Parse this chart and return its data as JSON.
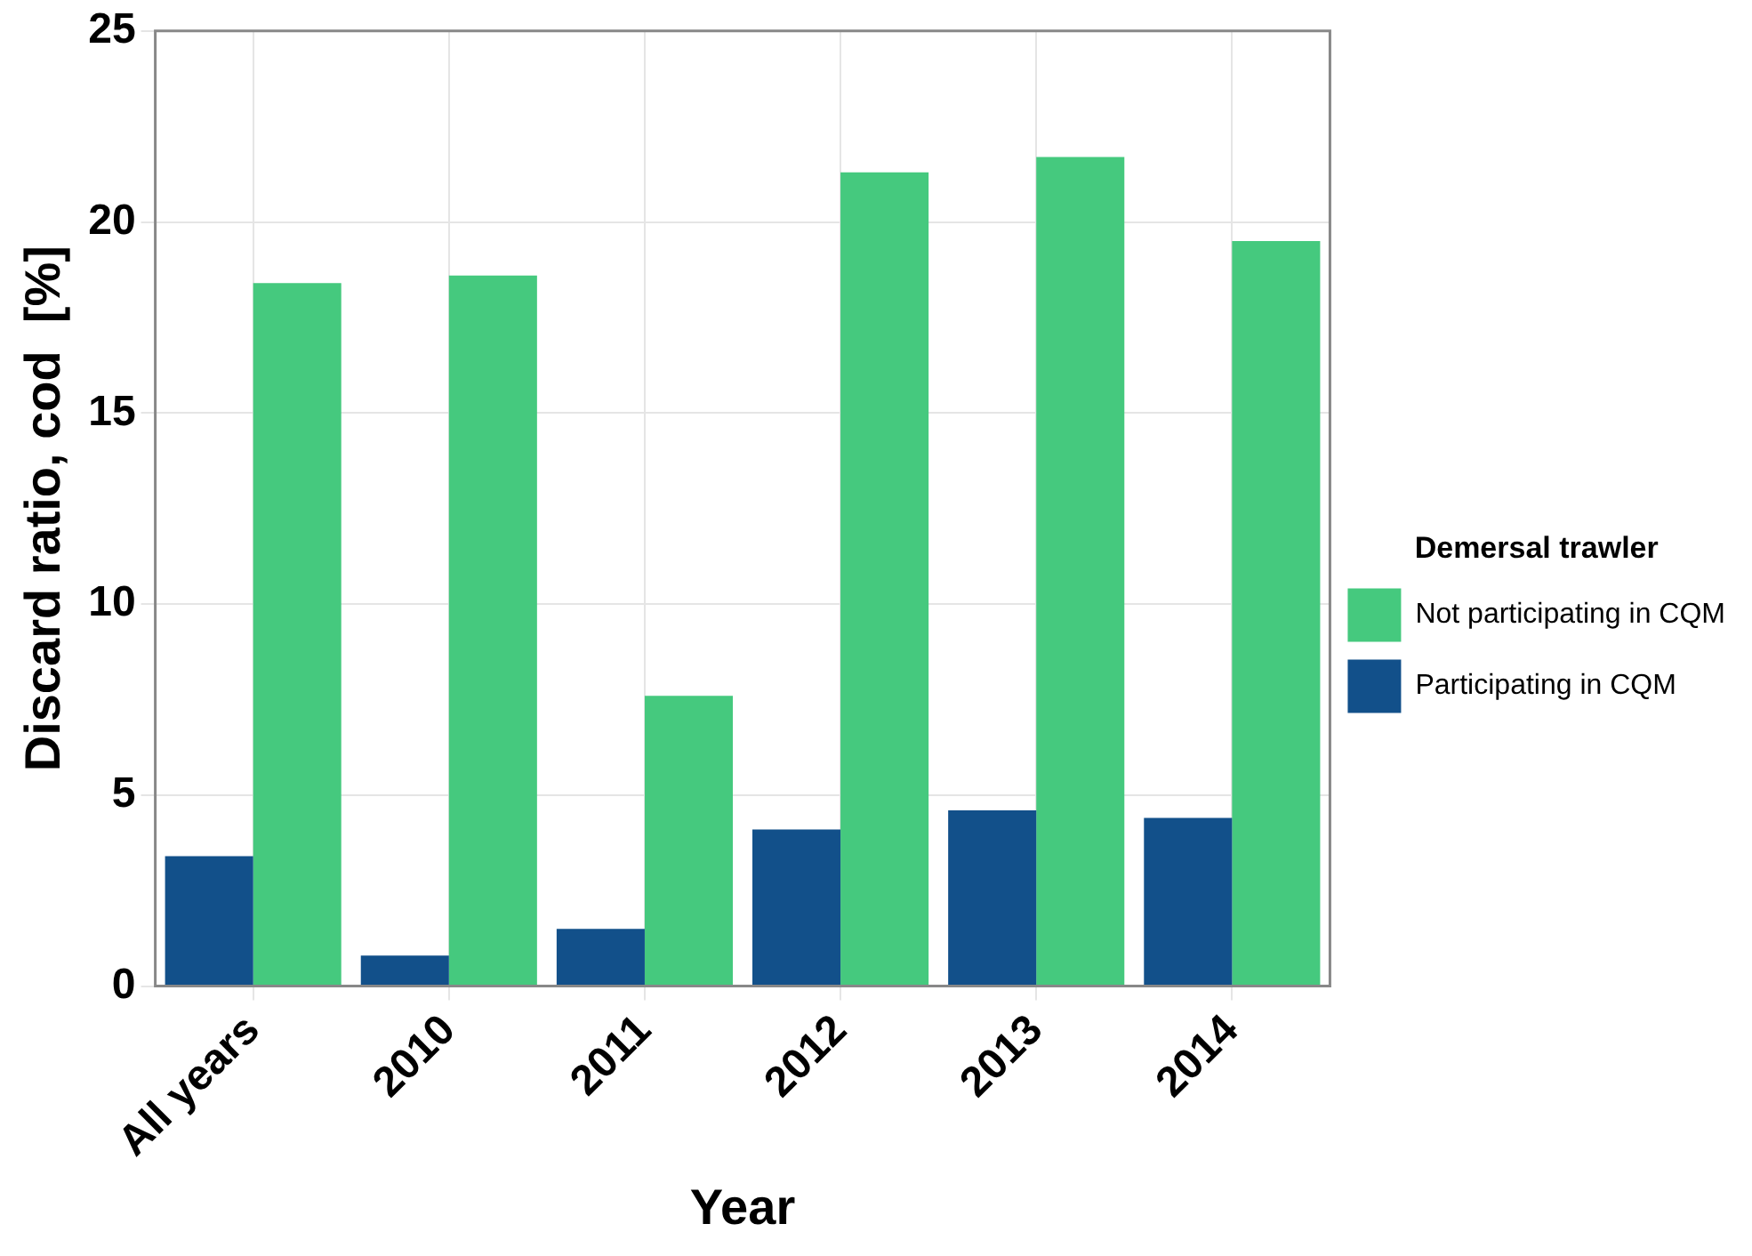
{
  "chart_data": {
    "type": "bar",
    "xlabel": "Year",
    "ylabel": "Discard ratio, cod  [%]",
    "legend_title": "Demersal trawler",
    "categories": [
      "All years",
      "2010",
      "2011",
      "2012",
      "2013",
      "2014"
    ],
    "series": [
      {
        "name": "Participating in CQM",
        "color": "#12508a",
        "values": [
          3.4,
          0.8,
          1.5,
          4.1,
          4.6,
          4.4
        ]
      },
      {
        "name": "Not participating in CQM",
        "color": "#45c97e",
        "values": [
          18.4,
          18.6,
          7.6,
          21.3,
          21.7,
          19.5
        ]
      }
    ],
    "ylim": [
      0,
      25
    ],
    "yticks": [
      0,
      5,
      10,
      15,
      20,
      25
    ],
    "grid": true,
    "legend": "right"
  }
}
